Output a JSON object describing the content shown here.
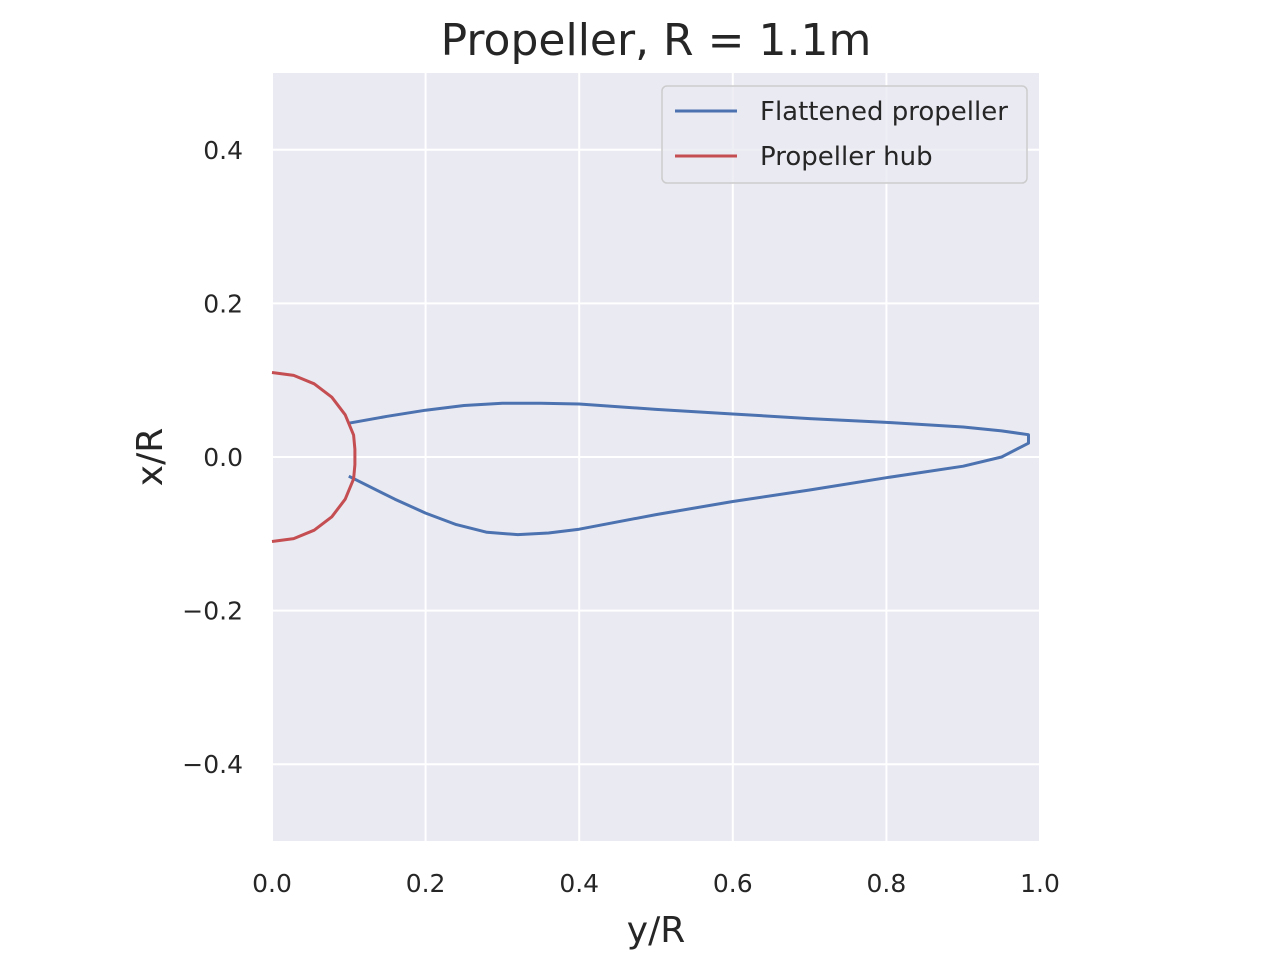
{
  "chart_data": {
    "type": "line",
    "title": "Propeller, R = 1.1m",
    "xlabel": "y/R",
    "ylabel": "x/R",
    "xlim": [
      0.0,
      1.0
    ],
    "ylim": [
      -0.5,
      0.5
    ],
    "xticks": [
      "0.0",
      "0.2",
      "0.4",
      "0.6",
      "0.8",
      "1.0"
    ],
    "xtick_values": [
      0.0,
      0.2,
      0.4,
      0.6,
      0.8,
      1.0
    ],
    "yticks": [
      "−0.4",
      "−0.2",
      "0.0",
      "0.2",
      "0.4"
    ],
    "ytick_values": [
      -0.4,
      -0.2,
      0.0,
      0.2,
      0.4
    ],
    "grid": true,
    "legend_position": "top-right",
    "background": "#eaeaf2",
    "series": [
      {
        "name": "Flattened propeller",
        "color": "#4c72b0",
        "x": [
          0.1,
          0.15,
          0.2,
          0.25,
          0.3,
          0.35,
          0.4,
          0.5,
          0.6,
          0.7,
          0.8,
          0.9,
          0.95,
          0.985,
          0.985,
          0.985,
          0.95,
          0.9,
          0.8,
          0.7,
          0.6,
          0.5,
          0.4,
          0.36,
          0.32,
          0.28,
          0.24,
          0.2,
          0.16,
          0.1
        ],
        "y": [
          0.044,
          0.053,
          0.061,
          0.067,
          0.07,
          0.07,
          0.069,
          0.062,
          0.056,
          0.05,
          0.045,
          0.039,
          0.034,
          0.029,
          0.023,
          0.018,
          0.0,
          -0.012,
          -0.027,
          -0.043,
          -0.058,
          -0.075,
          -0.094,
          -0.099,
          -0.101,
          -0.098,
          -0.088,
          -0.073,
          -0.055,
          -0.025
        ]
      },
      {
        "name": "Propeller hub",
        "color": "#c44e52",
        "x": [
          0.0,
          0.0283,
          0.055,
          0.0778,
          0.0953,
          0.1063,
          0.108,
          0.108,
          0.1063,
          0.0953,
          0.0778,
          0.055,
          0.0283,
          0.0
        ],
        "y": [
          0.11,
          0.1063,
          0.0953,
          0.0778,
          0.055,
          0.0285,
          0.01,
          -0.01,
          -0.0285,
          -0.055,
          -0.0778,
          -0.0953,
          -0.1063,
          -0.11
        ]
      }
    ]
  }
}
